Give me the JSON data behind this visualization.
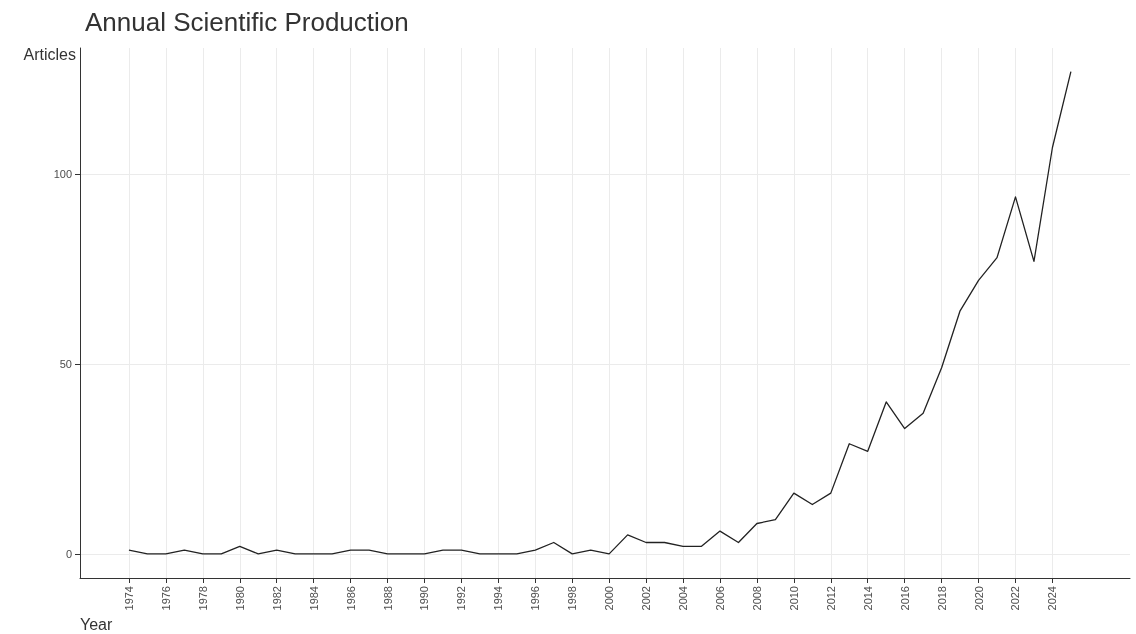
{
  "chart_data": {
    "type": "line",
    "title": "Annual Scientific Production",
    "xlabel": "Year",
    "ylabel": "Articles",
    "x": [
      1974,
      1975,
      1976,
      1977,
      1978,
      1979,
      1980,
      1981,
      1982,
      1983,
      1984,
      1985,
      1986,
      1987,
      1988,
      1989,
      1990,
      1991,
      1992,
      1993,
      1994,
      1995,
      1996,
      1997,
      1998,
      1999,
      2000,
      2001,
      2002,
      2003,
      2004,
      2005,
      2006,
      2007,
      2008,
      2009,
      2010,
      2011,
      2012,
      2013,
      2014,
      2015,
      2016,
      2017,
      2018,
      2019,
      2020,
      2021,
      2022,
      2023,
      2024,
      2025
    ],
    "series": [
      {
        "color": "#222222",
        "values": [
          1,
          0,
          0,
          1,
          0,
          0,
          2,
          0,
          1,
          0,
          0,
          0,
          1,
          1,
          0,
          0,
          0,
          1,
          1,
          0,
          0,
          0,
          1,
          3,
          0,
          1,
          0,
          5,
          3,
          3,
          2,
          2,
          6,
          3,
          8,
          9,
          16,
          13,
          16,
          29,
          27,
          40,
          33,
          37,
          49,
          64,
          72,
          78,
          94,
          77,
          107,
          127
        ]
      }
    ],
    "xlim": [
      1971.35,
      2028.2
    ],
    "ylim": [
      -6.35,
      133.2
    ],
    "xticks": [
      1974,
      1976,
      1978,
      1980,
      1982,
      1984,
      1986,
      1988,
      1990,
      1992,
      1994,
      1996,
      1998,
      2000,
      2002,
      2004,
      2006,
      2008,
      2010,
      2012,
      2014,
      2016,
      2018,
      2020,
      2022,
      2024
    ],
    "yticks": [
      0,
      50,
      100
    ],
    "grid": true,
    "marker": "none",
    "line_style": "solid"
  }
}
